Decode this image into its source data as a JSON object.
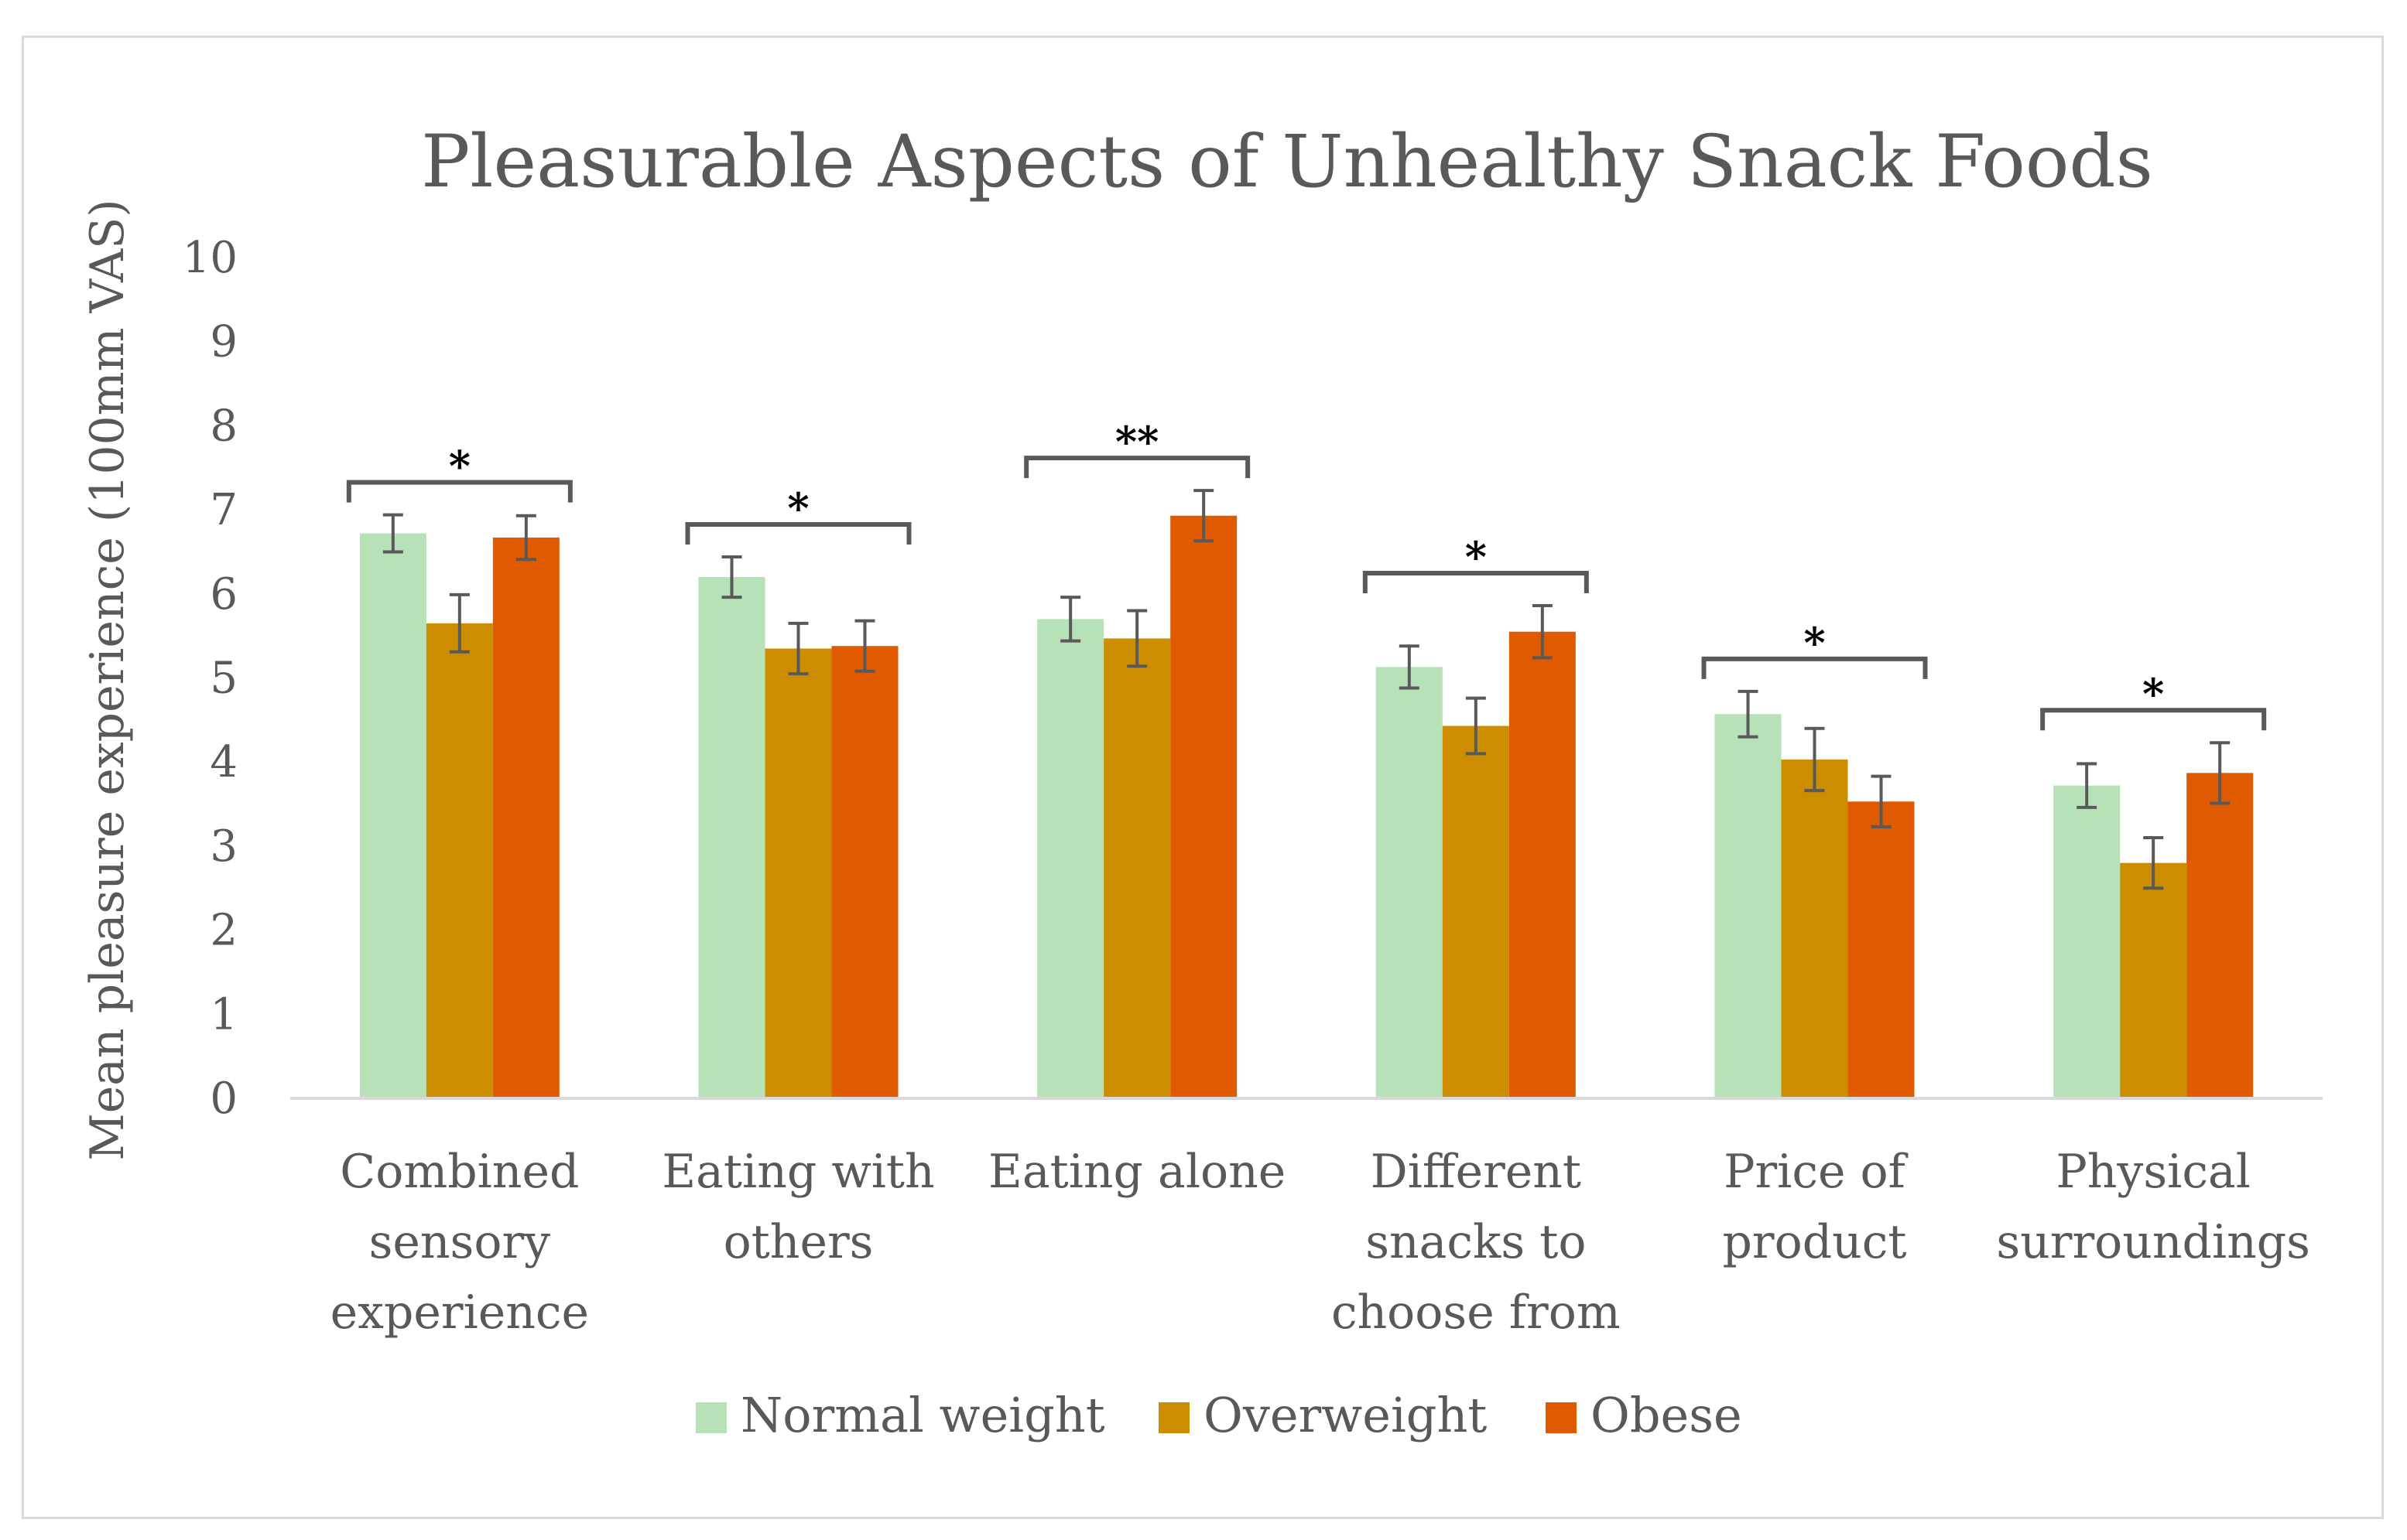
{
  "chart_data": {
    "type": "bar",
    "title": "Pleasurable Aspects of Unhealthy Snack Foods",
    "ylabel": "Mean pleasure experience (100mm VAS)",
    "xlabel": "",
    "ylim": [
      0,
      10
    ],
    "yticks": [
      0,
      1,
      2,
      3,
      4,
      5,
      6,
      7,
      8,
      9,
      10
    ],
    "grid": false,
    "legend_position": "bottom",
    "categories": [
      [
        "Combined",
        "sensory",
        "experience"
      ],
      [
        "Eating with",
        "others"
      ],
      [
        "Eating alone"
      ],
      [
        "Different",
        "snacks to",
        "choose from"
      ],
      [
        "Price of",
        "product"
      ],
      [
        "Physical",
        "surroundings"
      ]
    ],
    "series": [
      {
        "name": "Normal weight",
        "color": "#b7e1b7",
        "values": [
          6.72,
          6.2,
          5.7,
          5.13,
          4.57,
          3.72
        ],
        "error": [
          0.22,
          0.24,
          0.26,
          0.25,
          0.27,
          0.26
        ]
      },
      {
        "name": "Overweight",
        "color": "#cc8e00",
        "values": [
          5.65,
          5.35,
          5.47,
          4.43,
          4.03,
          2.8
        ],
        "error": [
          0.34,
          0.3,
          0.33,
          0.33,
          0.37,
          0.3
        ]
      },
      {
        "name": "Obese",
        "color": "#e05a00",
        "values": [
          6.67,
          5.38,
          6.93,
          5.55,
          3.53,
          3.87
        ],
        "error": [
          0.26,
          0.3,
          0.3,
          0.31,
          0.3,
          0.36
        ]
      }
    ],
    "significance": [
      "*",
      "*",
      "**",
      "*",
      "*",
      "*"
    ]
  }
}
